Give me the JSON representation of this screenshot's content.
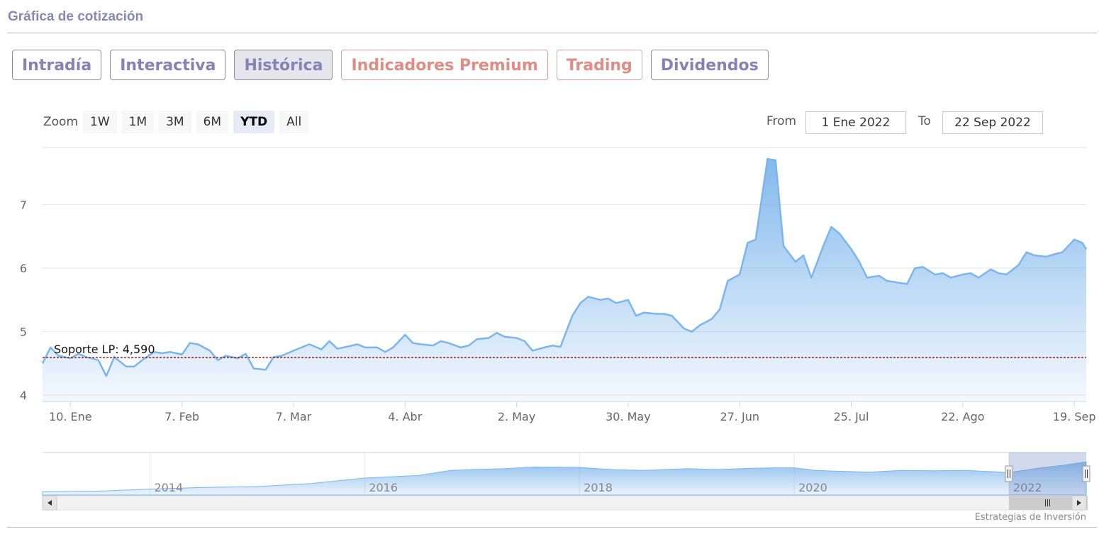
{
  "section_title": "Gráfica de cotización",
  "tabs": [
    {
      "label": "Intradía",
      "active": false,
      "premium": false
    },
    {
      "label": "Interactiva",
      "active": false,
      "premium": false
    },
    {
      "label": "Histórica",
      "active": true,
      "premium": false
    },
    {
      "label": "Indicadores Premium",
      "active": false,
      "premium": true
    },
    {
      "label": "Trading",
      "active": false,
      "premium": true
    },
    {
      "label": "Dividendos",
      "active": false,
      "premium": false
    }
  ],
  "range_selector": {
    "zoom_label": "Zoom",
    "buttons": [
      "1W",
      "1M",
      "3M",
      "6M",
      "YTD",
      "All"
    ],
    "active": "YTD",
    "from_label": "From",
    "from_value": "1 Ene 2022",
    "to_label": "To",
    "to_value": "22 Sep 2022"
  },
  "credits": "Estrategias de Inversión",
  "colors": {
    "series": "#7cb5ec",
    "support_line": "#8b0000",
    "tab_text": "#8782b5",
    "premium_text": "#df8c85"
  },
  "chart_data": {
    "type": "area",
    "title": "",
    "xlabel": "",
    "ylabel": "",
    "ylim": [
      3.9,
      7.9
    ],
    "yticks": [
      4,
      5,
      6,
      7
    ],
    "xticks": [
      "10. Ene",
      "7. Feb",
      "7. Mar",
      "4. Abr",
      "2. May",
      "30. May",
      "27. Jun",
      "25. Jul",
      "22. Ago",
      "19. Sep"
    ],
    "xtick_dates": [
      "2022-01-10",
      "2022-02-07",
      "2022-03-07",
      "2022-04-04",
      "2022-05-02",
      "2022-05-30",
      "2022-06-27",
      "2022-07-25",
      "2022-08-22",
      "2022-09-19"
    ],
    "xlim": [
      "2022-01-03",
      "2022-09-22"
    ],
    "series": [
      {
        "x": [
          "2022-01-03",
          "2022-01-05",
          "2022-01-07",
          "2022-01-10",
          "2022-01-12",
          "2022-01-14",
          "2022-01-17",
          "2022-01-19",
          "2022-01-21",
          "2022-01-24",
          "2022-01-26",
          "2022-01-28",
          "2022-01-31",
          "2022-02-02",
          "2022-02-04",
          "2022-02-07",
          "2022-02-09",
          "2022-02-11",
          "2022-02-14",
          "2022-02-16",
          "2022-02-18",
          "2022-02-21",
          "2022-02-23",
          "2022-02-25",
          "2022-02-28",
          "2022-03-02",
          "2022-03-04",
          "2022-03-07",
          "2022-03-09",
          "2022-03-11",
          "2022-03-14",
          "2022-03-16",
          "2022-03-18",
          "2022-03-21",
          "2022-03-23",
          "2022-03-25",
          "2022-03-28",
          "2022-03-30",
          "2022-04-01",
          "2022-04-04",
          "2022-04-06",
          "2022-04-08",
          "2022-04-11",
          "2022-04-13",
          "2022-04-15",
          "2022-04-18",
          "2022-04-20",
          "2022-04-22",
          "2022-04-25",
          "2022-04-27",
          "2022-04-29",
          "2022-05-02",
          "2022-05-04",
          "2022-05-06",
          "2022-05-09",
          "2022-05-11",
          "2022-05-13",
          "2022-05-16",
          "2022-05-18",
          "2022-05-20",
          "2022-05-23",
          "2022-05-25",
          "2022-05-27",
          "2022-05-30",
          "2022-06-01",
          "2022-06-03",
          "2022-06-06",
          "2022-06-08",
          "2022-06-10",
          "2022-06-13",
          "2022-06-15",
          "2022-06-17",
          "2022-06-20",
          "2022-06-22",
          "2022-06-24",
          "2022-06-27",
          "2022-06-29",
          "2022-07-01",
          "2022-07-04",
          "2022-07-06",
          "2022-07-08",
          "2022-07-11",
          "2022-07-13",
          "2022-07-15",
          "2022-07-18",
          "2022-07-20",
          "2022-07-22",
          "2022-07-25",
          "2022-07-27",
          "2022-07-29",
          "2022-08-01",
          "2022-08-03",
          "2022-08-05",
          "2022-08-08",
          "2022-08-10",
          "2022-08-12",
          "2022-08-15",
          "2022-08-17",
          "2022-08-19",
          "2022-08-22",
          "2022-08-24",
          "2022-08-26",
          "2022-08-29",
          "2022-08-31",
          "2022-09-02",
          "2022-09-05",
          "2022-09-07",
          "2022-09-09",
          "2022-09-12",
          "2022-09-14",
          "2022-09-16",
          "2022-09-19",
          "2022-09-21",
          "2022-09-22"
        ],
        "values": [
          4.5,
          4.75,
          4.62,
          4.58,
          4.65,
          4.6,
          4.55,
          4.3,
          4.6,
          4.45,
          4.45,
          4.55,
          4.68,
          4.66,
          4.68,
          4.64,
          4.82,
          4.8,
          4.7,
          4.55,
          4.62,
          4.58,
          4.65,
          4.42,
          4.4,
          4.6,
          4.62,
          4.7,
          4.75,
          4.8,
          4.72,
          4.85,
          4.73,
          4.77,
          4.8,
          4.75,
          4.75,
          4.68,
          4.75,
          4.95,
          4.82,
          4.8,
          4.78,
          4.85,
          4.82,
          4.75,
          4.78,
          4.88,
          4.9,
          4.98,
          4.92,
          4.9,
          4.85,
          4.7,
          4.75,
          4.78,
          4.76,
          5.25,
          5.45,
          5.55,
          5.5,
          5.52,
          5.45,
          5.5,
          5.25,
          5.3,
          5.28,
          5.28,
          5.25,
          5.05,
          5.0,
          5.1,
          5.2,
          5.35,
          5.8,
          5.9,
          6.4,
          6.45,
          7.72,
          7.7,
          6.35,
          6.1,
          6.2,
          5.85,
          6.35,
          6.65,
          6.55,
          6.3,
          6.1,
          5.85,
          5.88,
          5.8,
          5.78,
          5.75,
          6.0,
          6.02,
          5.9,
          5.92,
          5.85,
          5.9,
          5.92,
          5.85,
          5.98,
          5.92,
          5.9,
          6.05,
          6.25,
          6.2,
          6.18,
          6.22,
          6.25,
          6.45,
          6.4,
          6.3
        ]
      }
    ],
    "plot_lines": [
      {
        "value": 4.59,
        "label": "Soporte LP: 4,590",
        "style": "dashed"
      }
    ],
    "navigator": {
      "labels": [
        "2014",
        "2016",
        "2018",
        "2020",
        "2022"
      ],
      "label_years": [
        2014,
        2016,
        2018,
        2020,
        2022
      ],
      "xlim": [
        2013.0,
        2022.72
      ],
      "selected_range": [
        2022.0,
        2022.72
      ],
      "series": {
        "x": [
          2013.0,
          2013.5,
          2014.0,
          2014.5,
          2015.0,
          2015.5,
          2016.0,
          2016.5,
          2016.8,
          2017.0,
          2017.3,
          2017.6,
          2018.0,
          2018.3,
          2018.6,
          2019.0,
          2019.3,
          2019.6,
          2019.8,
          2020.0,
          2020.2,
          2020.4,
          2020.7,
          2021.0,
          2021.3,
          2021.6,
          2022.0,
          2022.3,
          2022.5,
          2022.72
        ],
        "values": [
          0.08,
          0.09,
          0.14,
          0.18,
          0.2,
          0.27,
          0.4,
          0.46,
          0.58,
          0.6,
          0.62,
          0.66,
          0.65,
          0.6,
          0.58,
          0.62,
          0.6,
          0.63,
          0.64,
          0.64,
          0.58,
          0.56,
          0.54,
          0.58,
          0.57,
          0.58,
          0.53,
          0.64,
          0.7,
          0.78
        ]
      }
    }
  }
}
